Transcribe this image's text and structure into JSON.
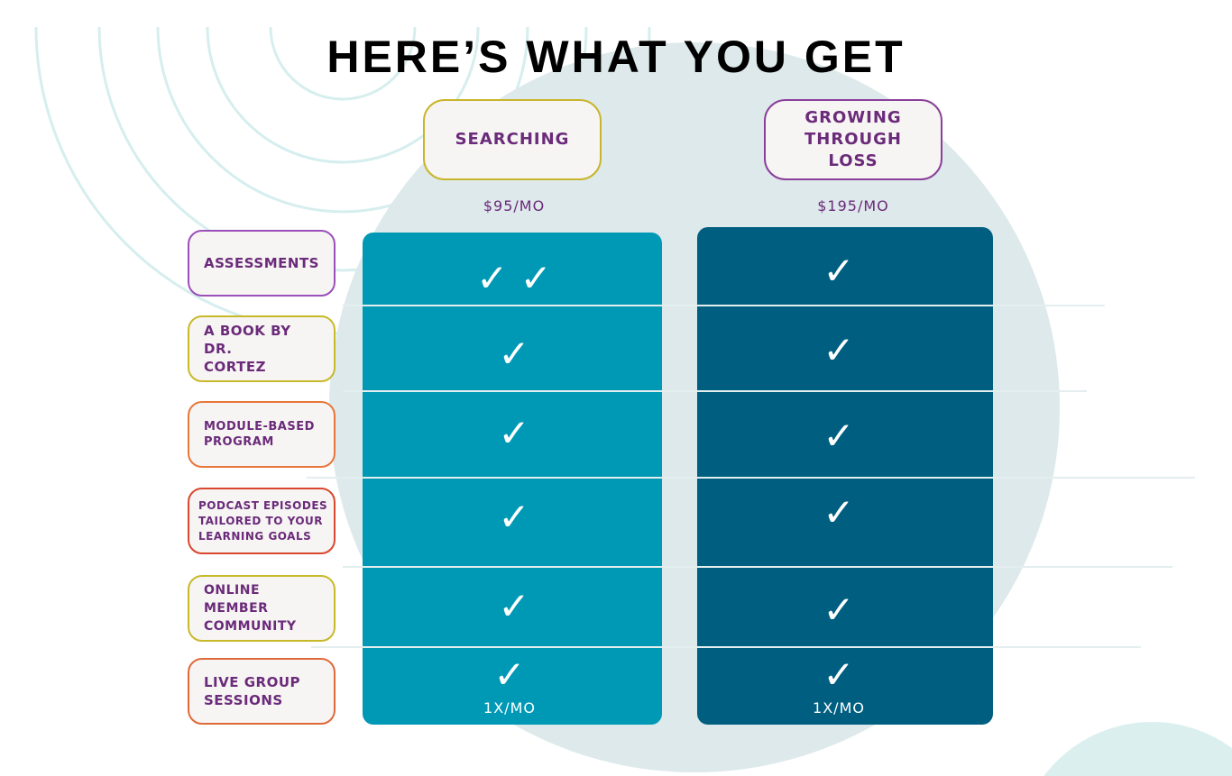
{
  "title": "HERE’S WHAT YOU GET",
  "colors": {
    "teal": "#0099b5",
    "navy": "#005f80",
    "text": "#6b2a7a",
    "circle": "#dde9eb"
  },
  "plans": [
    {
      "name": "SEARCHING",
      "price": "$95/MO"
    },
    {
      "name": "GROWING THROUGH LOSS",
      "price": "$195/MO"
    }
  ],
  "features": [
    {
      "label": "ASSESSMENTS",
      "searching": "✓ ✓",
      "growing": "✓"
    },
    {
      "label": "A BOOK BY DR. CORTEZ",
      "searching": "✓",
      "growing": "✓"
    },
    {
      "label": "MODULE-BASED PROGRAM",
      "searching": "✓",
      "growing": "✓"
    },
    {
      "label": "PODCAST EPISODES TAILORED TO YOUR LEARNING GOALS",
      "searching": "✓",
      "growing": "✓"
    },
    {
      "label": "ONLINE MEMBER COMMUNITY",
      "searching": "✓",
      "growing": "✓"
    },
    {
      "label": "LIVE GROUP SESSIONS",
      "searching": "✓",
      "growing": "✓",
      "searching_note": "1X/MO",
      "growing_note": "1X/MO"
    }
  ]
}
